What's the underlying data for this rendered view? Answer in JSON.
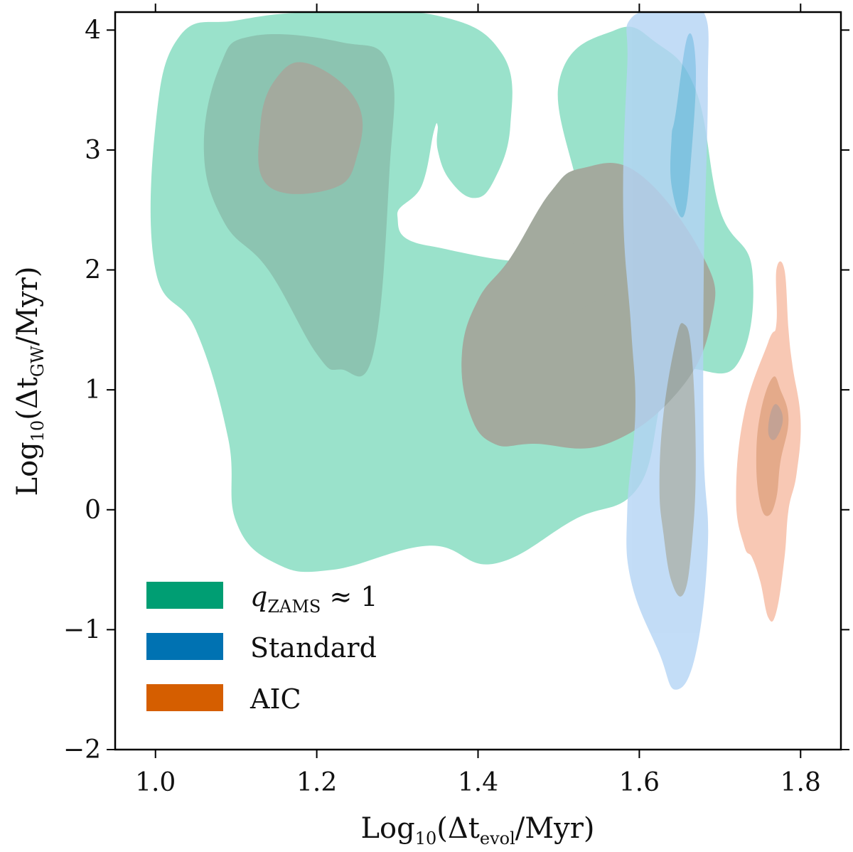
{
  "chart_data": {
    "type": "contour",
    "xlabel": {
      "prefix": "Log",
      "base": "10",
      "open": "(Δt",
      "sub": "evol",
      "close": "/Myr)"
    },
    "ylabel": {
      "prefix": "Log",
      "base": "10",
      "open": "(Δt",
      "sub": "GW",
      "close": "/Myr)"
    },
    "xlim": [
      0.95,
      1.85
    ],
    "ylim": [
      -2.0,
      4.15
    ],
    "xticks": [
      1.0,
      1.2,
      1.4,
      1.6,
      1.8
    ],
    "xtick_labels": [
      "1.0",
      "1.2",
      "1.4",
      "1.6",
      "1.8"
    ],
    "yticks": [
      -2,
      -1,
      0,
      1,
      2,
      3,
      4
    ],
    "ytick_labels": [
      "−2",
      "−1",
      "0",
      "1",
      "2",
      "3",
      "4"
    ],
    "legend_position": "lower-left",
    "legend": [
      {
        "italic": "q",
        "sub": "ZAMS",
        "rest": " ≈ 1",
        "color": "#009E73"
      },
      {
        "label": "Standard",
        "color": "#0072B2"
      },
      {
        "label": "AIC",
        "color": "#D55E00"
      }
    ],
    "series": [
      {
        "name": "qZAMS ≈ 1",
        "fill_colors": [
          "#9AE2CB",
          "#8CC4B1",
          "#A3AA9E"
        ],
        "levels": [
          [
            [
              1.0,
              3.2
            ],
            [
              1.03,
              3.95
            ],
            [
              1.1,
              4.08
            ],
            [
              1.2,
              4.15
            ],
            [
              1.35,
              4.12
            ],
            [
              1.43,
              3.8
            ],
            [
              1.44,
              3.2
            ],
            [
              1.42,
              2.75
            ],
            [
              1.395,
              2.6
            ],
            [
              1.365,
              2.75
            ],
            [
              1.35,
              3.0
            ],
            [
              1.35,
              3.2
            ],
            [
              1.345,
              3.15
            ],
            [
              1.33,
              2.7
            ],
            [
              1.3,
              2.45
            ],
            [
              1.34,
              2.2
            ],
            [
              1.52,
              2.2
            ],
            [
              1.5,
              3.55
            ],
            [
              1.57,
              4.0
            ],
            [
              1.62,
              3.9
            ],
            [
              1.67,
              3.5
            ],
            [
              1.7,
              2.5
            ],
            [
              1.74,
              2.0
            ],
            [
              1.72,
              1.2
            ],
            [
              1.64,
              1.1
            ],
            [
              1.6,
              0.2
            ],
            [
              1.52,
              -0.08
            ],
            [
              1.42,
              -0.45
            ],
            [
              1.34,
              -0.3
            ],
            [
              1.22,
              -0.5
            ],
            [
              1.15,
              -0.45
            ],
            [
              1.1,
              -0.1
            ],
            [
              1.09,
              0.6
            ],
            [
              1.05,
              1.5
            ],
            [
              1.0,
              2.0
            ]
          ],
          [
            [
              1.06,
              3.0
            ],
            [
              1.08,
              3.7
            ],
            [
              1.12,
              3.95
            ],
            [
              1.23,
              3.9
            ],
            [
              1.29,
              3.7
            ],
            [
              1.29,
              2.8
            ],
            [
              1.27,
              1.3
            ],
            [
              1.23,
              1.17
            ],
            [
              1.2,
              1.3
            ],
            [
              1.14,
              2.0
            ],
            [
              1.085,
              2.4
            ]
          ],
          [
            [
              1.13,
              3.2
            ],
            [
              1.15,
              3.6
            ],
            [
              1.19,
              3.72
            ],
            [
              1.25,
              3.4
            ],
            [
              1.25,
              2.95
            ],
            [
              1.22,
              2.68
            ],
            [
              1.14,
              2.7
            ]
          ],
          [
            [
              1.38,
              1.3
            ],
            [
              1.4,
              1.75
            ],
            [
              1.44,
              2.1
            ],
            [
              1.49,
              2.65
            ],
            [
              1.53,
              2.85
            ],
            [
              1.6,
              2.8
            ],
            [
              1.68,
              2.1
            ],
            [
              1.69,
              1.6
            ],
            [
              1.65,
              1.0
            ],
            [
              1.56,
              0.55
            ],
            [
              1.47,
              0.55
            ],
            [
              1.42,
              0.55
            ],
            [
              1.39,
              0.8
            ]
          ],
          [
            [
              1.49,
              1.75
            ],
            [
              1.5,
              2.0
            ],
            [
              1.525,
              2.25
            ],
            [
              1.58,
              2.3
            ],
            [
              1.6,
              2.1
            ],
            [
              1.57,
              1.85
            ],
            [
              1.5,
              1.6
            ]
          ]
        ]
      },
      {
        "name": "Standard",
        "fill_colors": [
          "#B4D4F5",
          "#7ABCE6",
          "#9DA9A8"
        ],
        "levels": [
          [
            [
              1.585,
              3.7
            ],
            [
              1.59,
              4.1
            ],
            [
              1.64,
              4.15
            ],
            [
              1.68,
              4.15
            ],
            [
              1.685,
              3.5
            ],
            [
              1.68,
              2.0
            ],
            [
              1.68,
              0.5
            ],
            [
              1.685,
              -0.3
            ],
            [
              1.67,
              -1.2
            ],
            [
              1.645,
              -1.5
            ],
            [
              1.625,
              -1.2
            ],
            [
              1.59,
              -0.6
            ],
            [
              1.585,
              0.0
            ],
            [
              1.595,
              0.8
            ],
            [
              1.59,
              1.5
            ],
            [
              1.58,
              2.5
            ]
          ],
          [
            [
              1.645,
              3.3
            ],
            [
              1.66,
              3.95
            ],
            [
              1.67,
              3.7
            ],
            [
              1.665,
              3.0
            ],
            [
              1.655,
              2.45
            ],
            [
              1.64,
              2.7
            ],
            [
              1.64,
              3.1
            ]
          ],
          [
            [
              1.63,
              0.8
            ],
            [
              1.645,
              1.4
            ],
            [
              1.655,
              1.55
            ],
            [
              1.665,
              1.3
            ],
            [
              1.67,
              0.4
            ],
            [
              1.665,
              -0.3
            ],
            [
              1.655,
              -0.7
            ],
            [
              1.64,
              -0.6
            ],
            [
              1.63,
              -0.2
            ],
            [
              1.625,
              0.2
            ]
          ],
          [
            [
              1.648,
              0.4
            ],
            [
              1.652,
              0.7
            ],
            [
              1.658,
              0.85
            ],
            [
              1.662,
              0.6
            ],
            [
              1.662,
              0.1
            ],
            [
              1.656,
              0.05
            ],
            [
              1.65,
              0.15
            ]
          ]
        ]
      },
      {
        "name": "AIC",
        "fill_colors": [
          "#F8C8B4",
          "#E4AA8A",
          "#C4A294"
        ],
        "levels": [
          [
            [
              1.72,
              0.1
            ],
            [
              1.73,
              0.8
            ],
            [
              1.76,
              1.4
            ],
            [
              1.77,
              1.55
            ],
            [
              1.77,
              2.0
            ],
            [
              1.78,
              2.0
            ],
            [
              1.785,
              1.5
            ],
            [
              1.79,
              1.2
            ],
            [
              1.8,
              0.75
            ],
            [
              1.795,
              0.3
            ],
            [
              1.785,
              0.0
            ],
            [
              1.78,
              -0.4
            ],
            [
              1.77,
              -0.85
            ],
            [
              1.76,
              -0.9
            ],
            [
              1.75,
              -0.6
            ],
            [
              1.74,
              -0.4
            ],
            [
              1.73,
              -0.3
            ]
          ],
          [
            [
              1.745,
              0.4
            ],
            [
              1.75,
              0.8
            ],
            [
              1.765,
              1.1
            ],
            [
              1.775,
              1.0
            ],
            [
              1.785,
              0.75
            ],
            [
              1.775,
              0.4
            ],
            [
              1.77,
              0.1
            ],
            [
              1.76,
              -0.05
            ],
            [
              1.75,
              0.05
            ]
          ],
          [
            [
              1.76,
              0.7
            ],
            [
              1.765,
              0.85
            ],
            [
              1.772,
              0.87
            ],
            [
              1.778,
              0.75
            ],
            [
              1.77,
              0.6
            ],
            [
              1.762,
              0.6
            ]
          ]
        ]
      }
    ]
  }
}
